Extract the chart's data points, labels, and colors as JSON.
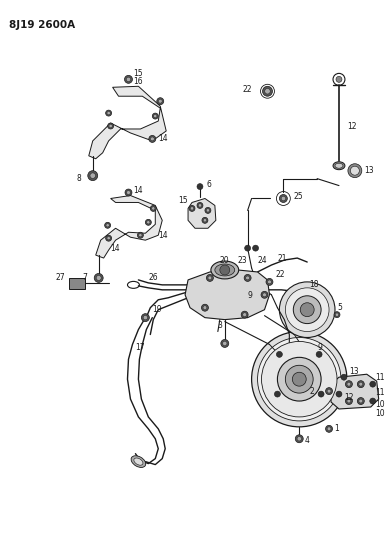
{
  "title": "8J19 2600A",
  "bg_color": "#ffffff",
  "line_color": "#1a1a1a",
  "fig_width": 3.91,
  "fig_height": 5.33,
  "dpi": 100
}
